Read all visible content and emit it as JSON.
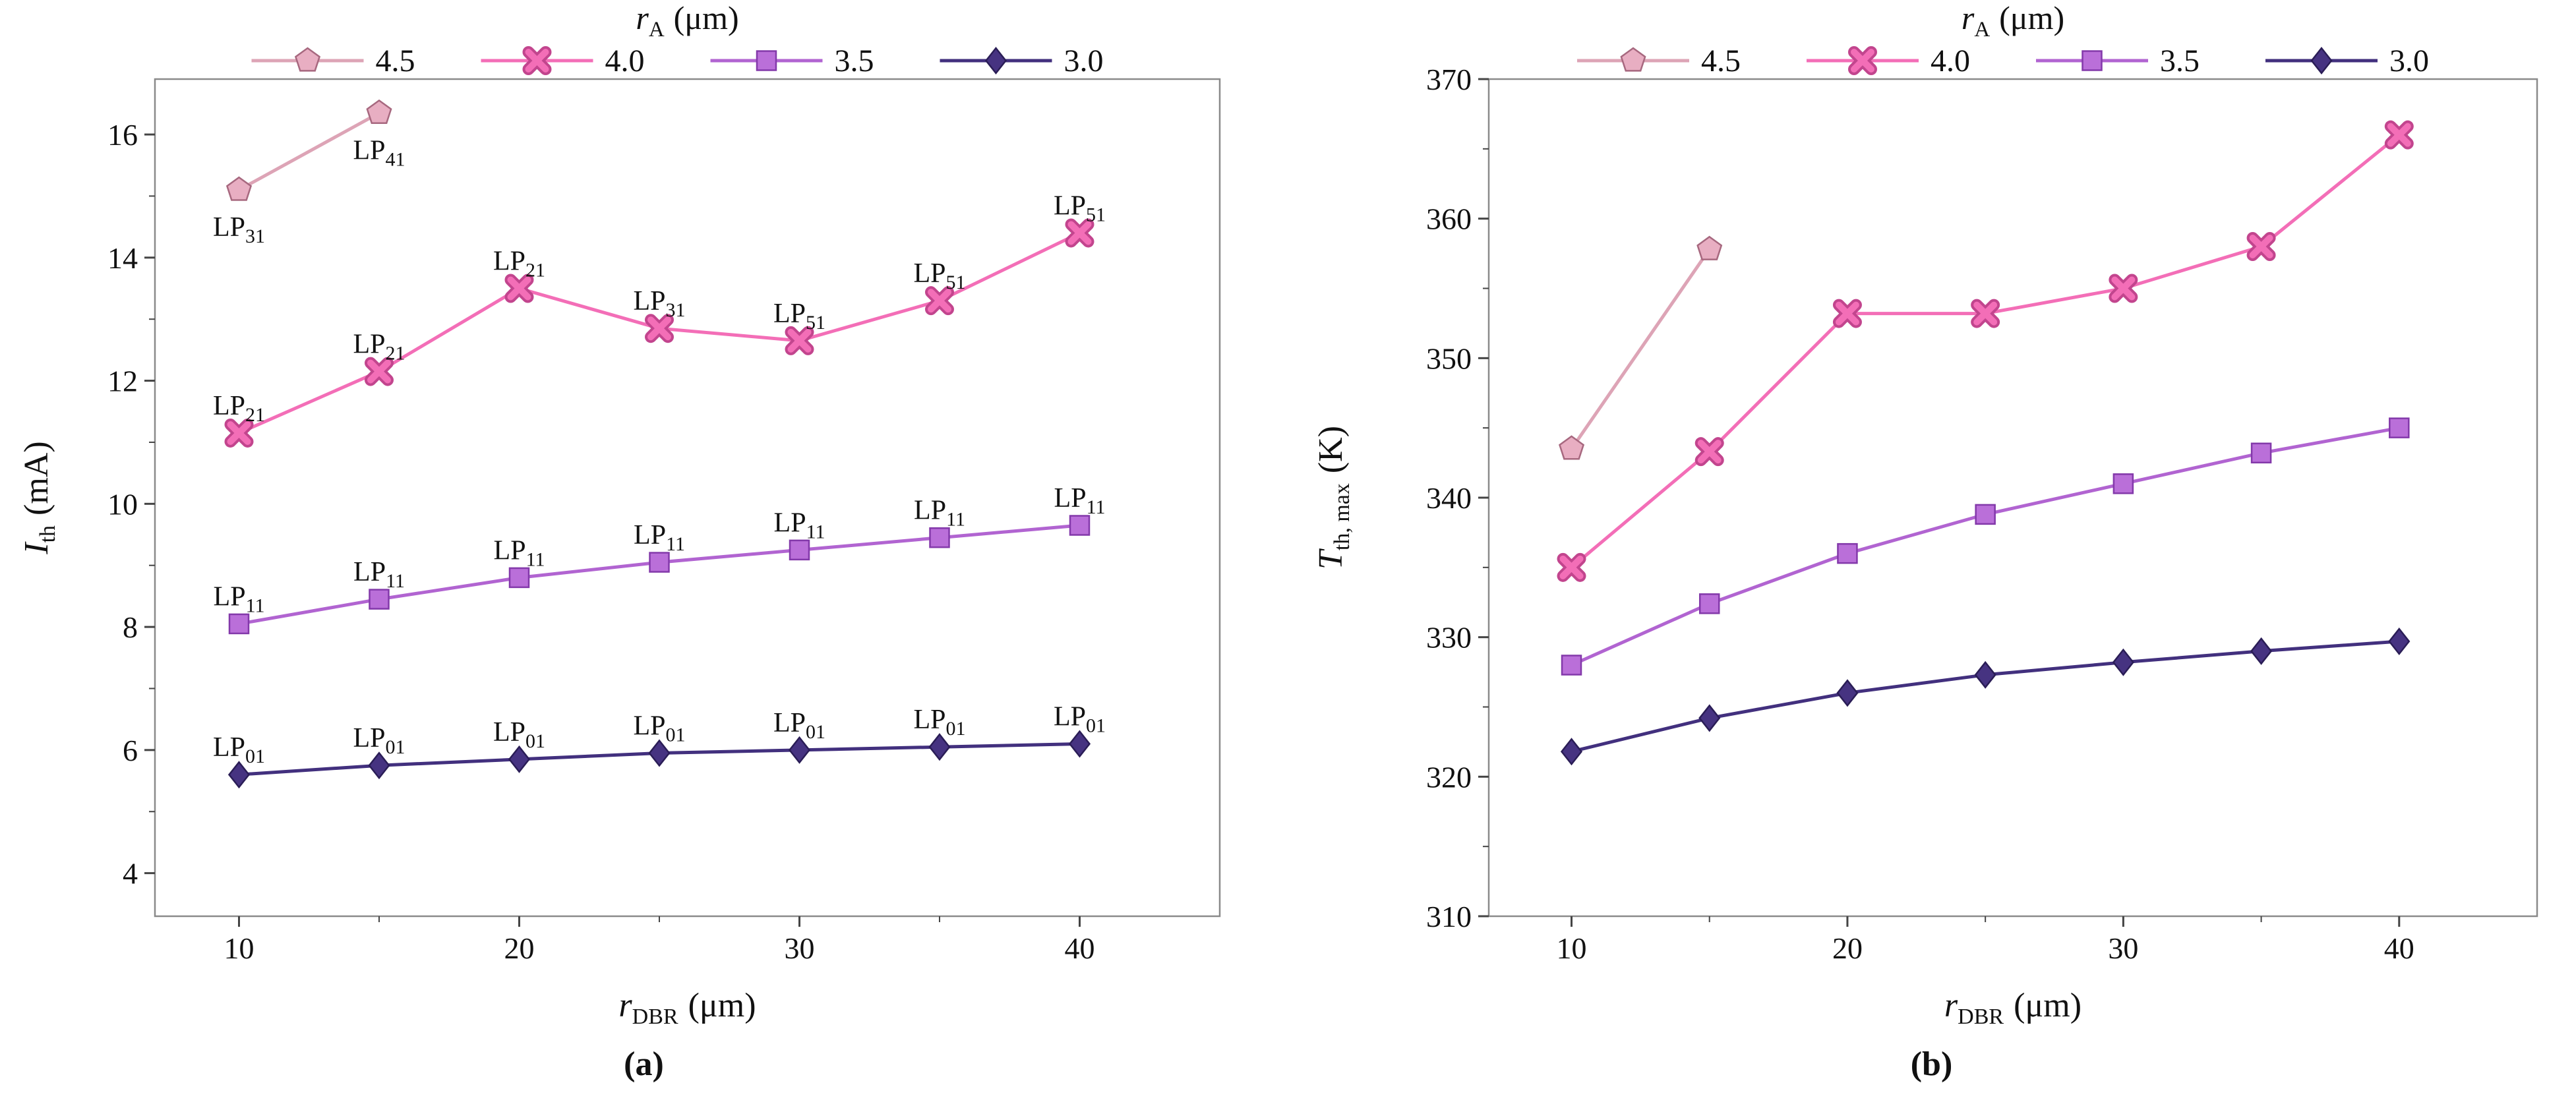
{
  "figure": {
    "background": "#ffffff",
    "text_color": "#111111",
    "frame_color": "#8a8a8a",
    "tick_color": "#444444"
  },
  "chart_data": [
    {
      "id": "a",
      "type": "line",
      "caption": "(a)",
      "legend": {
        "position": "top-center",
        "title": {
          "var": "r",
          "sub": "A",
          "unit": "(μm)"
        },
        "entries": [
          {
            "label": "4.5",
            "marker": "pentagon"
          },
          {
            "label": "4.0",
            "marker": "x-cross"
          },
          {
            "label": "3.5",
            "marker": "square"
          },
          {
            "label": "3.0",
            "marker": "diamond"
          }
        ]
      },
      "xlabel": {
        "var": "r",
        "sub": "DBR",
        "unit": "(μm)"
      },
      "ylabel": {
        "var": "I",
        "sub": "th",
        "unit": "(mA)"
      },
      "xlim": [
        7,
        45
      ],
      "ylim": [
        3.3,
        16.9
      ],
      "xticks": [
        10,
        20,
        30,
        40
      ],
      "xminorticks": [
        15,
        25,
        35
      ],
      "yticks": [
        4,
        6,
        8,
        10,
        12,
        14,
        16
      ],
      "yminorticks": [
        5,
        7,
        9,
        11,
        13,
        15
      ],
      "grid": false,
      "series": [
        {
          "name": "4.5",
          "marker": "pentagon",
          "line_color": "#dda4b6",
          "marker_fill": "#e8aec2",
          "marker_edge": "#a7687f",
          "x": [
            10,
            15
          ],
          "y": [
            15.1,
            16.35
          ],
          "point_labels": [
            {
              "base": "LP",
              "sub": "31",
              "pos": "below"
            },
            {
              "base": "LP",
              "sub": "41",
              "pos": "below"
            }
          ]
        },
        {
          "name": "4.0",
          "marker": "x-cross",
          "line_color": "#f36eb7",
          "marker_fill": "#f36eb7",
          "marker_edge": "#c2458e",
          "x": [
            10,
            15,
            20,
            25,
            30,
            35,
            40
          ],
          "y": [
            11.15,
            12.15,
            13.5,
            12.85,
            12.65,
            13.3,
            14.4
          ],
          "point_labels": [
            {
              "base": "LP",
              "sub": "21",
              "pos": "above"
            },
            {
              "base": "LP",
              "sub": "21",
              "pos": "above"
            },
            {
              "base": "LP",
              "sub": "21",
              "pos": "above"
            },
            {
              "base": "LP",
              "sub": "31",
              "pos": "above"
            },
            {
              "base": "LP",
              "sub": "51",
              "pos": "above"
            },
            {
              "base": "LP",
              "sub": "51",
              "pos": "above"
            },
            {
              "base": "LP",
              "sub": "51",
              "pos": "above"
            }
          ]
        },
        {
          "name": "3.5",
          "marker": "square",
          "line_color": "#b164d1",
          "marker_fill": "#ba6fd9",
          "marker_edge": "#8339aa",
          "x": [
            10,
            15,
            20,
            25,
            30,
            35,
            40
          ],
          "y": [
            8.05,
            8.45,
            8.8,
            9.05,
            9.25,
            9.45,
            9.65
          ],
          "point_labels": [
            {
              "base": "LP",
              "sub": "11",
              "pos": "above"
            },
            {
              "base": "LP",
              "sub": "11",
              "pos": "above"
            },
            {
              "base": "LP",
              "sub": "11",
              "pos": "above"
            },
            {
              "base": "LP",
              "sub": "11",
              "pos": "above"
            },
            {
              "base": "LP",
              "sub": "11",
              "pos": "above"
            },
            {
              "base": "LP",
              "sub": "11",
              "pos": "above"
            },
            {
              "base": "LP",
              "sub": "11",
              "pos": "above"
            }
          ]
        },
        {
          "name": "3.0",
          "marker": "diamond",
          "line_color": "#42307e",
          "marker_fill": "#463381",
          "marker_edge": "#2a1d56",
          "x": [
            10,
            15,
            20,
            25,
            30,
            35,
            40
          ],
          "y": [
            5.6,
            5.75,
            5.85,
            5.95,
            6.0,
            6.05,
            6.1
          ],
          "point_labels": [
            {
              "base": "LP",
              "sub": "01",
              "pos": "above"
            },
            {
              "base": "LP",
              "sub": "01",
              "pos": "above"
            },
            {
              "base": "LP",
              "sub": "01",
              "pos": "above"
            },
            {
              "base": "LP",
              "sub": "01",
              "pos": "above"
            },
            {
              "base": "LP",
              "sub": "01",
              "pos": "above"
            },
            {
              "base": "LP",
              "sub": "01",
              "pos": "above"
            },
            {
              "base": "LP",
              "sub": "01",
              "pos": "above"
            }
          ]
        }
      ]
    },
    {
      "id": "b",
      "type": "line",
      "caption": "(b)",
      "legend": {
        "position": "top-center",
        "title": {
          "var": "r",
          "sub": "A",
          "unit": "(μm)"
        },
        "entries": [
          {
            "label": "4.5",
            "marker": "pentagon"
          },
          {
            "label": "4.0",
            "marker": "x-cross"
          },
          {
            "label": "3.5",
            "marker": "square"
          },
          {
            "label": "3.0",
            "marker": "diamond"
          }
        ]
      },
      "xlabel": {
        "var": "r",
        "sub": "DBR",
        "unit": "(μm)"
      },
      "ylabel": {
        "var": "T",
        "sub": "th, max",
        "unit": "(K)"
      },
      "xlim": [
        7,
        45
      ],
      "ylim": [
        310,
        370
      ],
      "xticks": [
        10,
        20,
        30,
        40
      ],
      "xminorticks": [
        15,
        25,
        35
      ],
      "yticks": [
        310,
        320,
        330,
        340,
        350,
        360,
        370
      ],
      "yminorticks": [
        315,
        325,
        335,
        345,
        355,
        365
      ],
      "grid": false,
      "series": [
        {
          "name": "4.5",
          "marker": "pentagon",
          "line_color": "#dda4b6",
          "marker_fill": "#e8aec2",
          "marker_edge": "#a7687f",
          "x": [
            10,
            15
          ],
          "y": [
            343.5,
            357.8
          ]
        },
        {
          "name": "4.0",
          "marker": "x-cross",
          "line_color": "#f36eb7",
          "marker_fill": "#f36eb7",
          "marker_edge": "#c2458e",
          "x": [
            10,
            15,
            20,
            25,
            30,
            35,
            40
          ],
          "y": [
            335,
            343.3,
            353.2,
            353.2,
            355,
            358,
            366
          ]
        },
        {
          "name": "3.5",
          "marker": "square",
          "line_color": "#b164d1",
          "marker_fill": "#ba6fd9",
          "marker_edge": "#8339aa",
          "x": [
            10,
            15,
            20,
            25,
            30,
            35,
            40
          ],
          "y": [
            328,
            332.4,
            336,
            338.8,
            341,
            343.2,
            345
          ]
        },
        {
          "name": "3.0",
          "marker": "diamond",
          "line_color": "#42307e",
          "marker_fill": "#463381",
          "marker_edge": "#2a1d56",
          "x": [
            10,
            15,
            20,
            25,
            30,
            35,
            40
          ],
          "y": [
            321.8,
            324.2,
            326,
            327.3,
            328.2,
            329,
            329.7
          ]
        }
      ]
    }
  ]
}
